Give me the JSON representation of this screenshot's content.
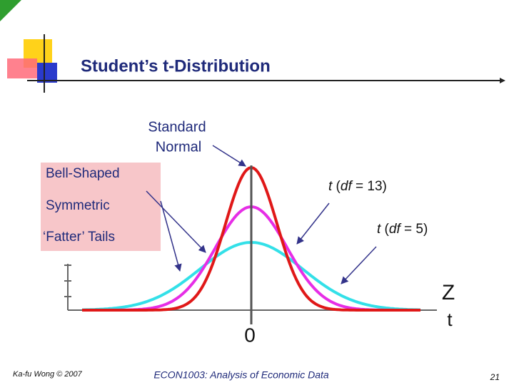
{
  "title": "Student’s t-Distribution",
  "curves": {
    "standard_normal": [
      "Standard",
      "Normal"
    ],
    "t13": [
      "t",
      " (",
      "df",
      " = 13)"
    ],
    "t5": [
      "t",
      " (",
      "df",
      " = 5)"
    ]
  },
  "properties": [
    "Bell-Shaped",
    "Symmetric",
    "‘Fatter’ Tails"
  ],
  "axis": {
    "origin": "0",
    "z": "Z",
    "t": "t"
  },
  "footer": {
    "author": "Ka-fu Wong © 2007",
    "course": "ECON1003: Analysis of Economic Data",
    "page": "21"
  }
}
